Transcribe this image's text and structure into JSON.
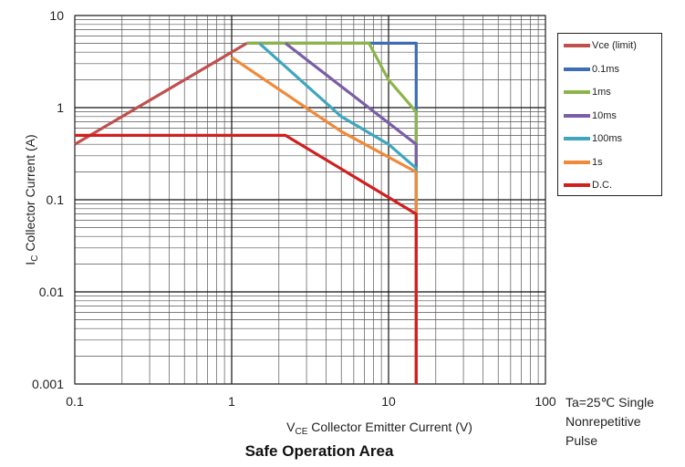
{
  "chart_data": {
    "type": "line",
    "title": "Safe Operation Area",
    "xlabel": {
      "prefix": "V",
      "sub": "CE",
      "rest": " Collector  Emitter  Current  (V)"
    },
    "ylabel": {
      "prefix": "I",
      "sub": "C",
      "rest": " Collector  Current  (A)"
    },
    "x_scale": "log",
    "y_scale": "log",
    "xlim": [
      0.1,
      100
    ],
    "ylim": [
      0.001,
      10
    ],
    "x_ticks": [
      0.1,
      1,
      10,
      100
    ],
    "x_tick_labels": [
      "0.1",
      "1",
      "10",
      "100"
    ],
    "y_ticks": [
      0.001,
      0.01,
      0.1,
      1,
      10
    ],
    "y_tick_labels": [
      "0.001",
      "0.01",
      "0.1",
      "1",
      "10"
    ],
    "grid": true,
    "legend_position": "right",
    "note_lines": [
      "Ta=25℃  Single",
      "Nonrepetitive",
      "Pulse"
    ],
    "series": [
      {
        "name": "Vce (limit)",
        "color": "#c0504d",
        "points": [
          [
            0.1,
            0.4
          ],
          [
            1.25,
            5
          ]
        ]
      },
      {
        "name": "0.1ms",
        "color": "#3c6eb4",
        "points": [
          [
            1.25,
            5
          ],
          [
            15,
            5
          ],
          [
            15,
            0.001
          ]
        ]
      },
      {
        "name": "1ms",
        "color": "#8db44a",
        "points": [
          [
            1.25,
            5
          ],
          [
            7.5,
            5
          ],
          [
            10,
            2
          ],
          [
            15,
            0.9
          ],
          [
            15,
            0.001
          ]
        ]
      },
      {
        "name": "10ms",
        "color": "#7b5ea7",
        "points": [
          [
            2.2,
            5
          ],
          [
            15,
            0.4
          ],
          [
            15,
            0.001
          ]
        ]
      },
      {
        "name": "100ms",
        "color": "#3ea6bf",
        "points": [
          [
            1.5,
            5
          ],
          [
            5,
            0.8
          ],
          [
            10,
            0.4
          ],
          [
            15,
            0.22
          ],
          [
            15,
            0.001
          ]
        ]
      },
      {
        "name": "1s",
        "color": "#f08a3a",
        "points": [
          [
            1,
            3.5
          ],
          [
            5,
            0.55
          ],
          [
            15,
            0.2
          ],
          [
            15,
            0.001
          ]
        ]
      },
      {
        "name": "D.C.",
        "color": "#d11f1f",
        "points": [
          [
            0.1,
            0.5
          ],
          [
            2.2,
            0.5
          ],
          [
            15,
            0.07
          ],
          [
            15,
            0.001
          ]
        ]
      }
    ]
  }
}
